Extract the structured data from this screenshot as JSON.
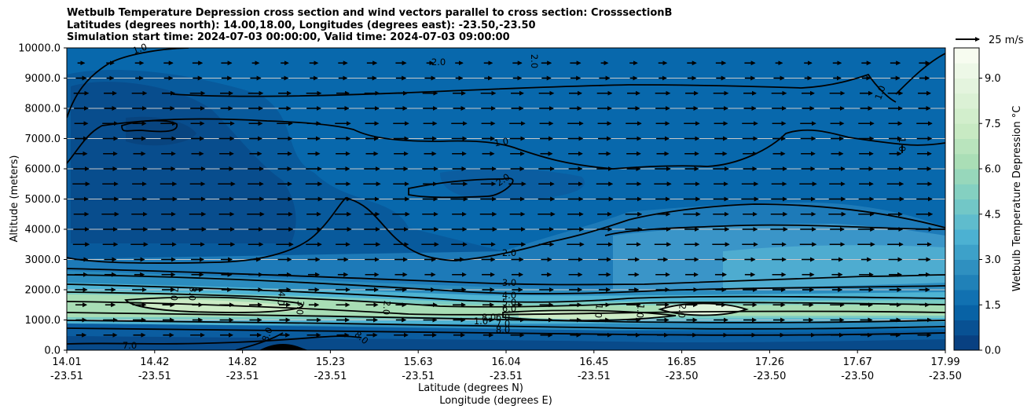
{
  "chart_data": {
    "type": "heatmap",
    "title_lines": [
      "Wetbulb Temperature Depression cross section and wind vectors parallel to cross section: CrosssectionB",
      "Latitudes (degrees north): 14.00,18.00, Longitudes (degrees east): -23.50,-23.50",
      "Simulation start time: 2024-07-03 00:00:00, Valid time: 2024-07-03 09:00:00"
    ],
    "ylabel": "Altitude (meters)",
    "xlabel_line1": "Latitude (degrees N)",
    "xlabel_line2": "Longitude (degrees E)",
    "colorbar_label": "Wetbulb Temperature Depression °C",
    "quiver_key_label": "25 m/s",
    "ylim": [
      0,
      10000
    ],
    "yticks": [
      "0.0",
      "1000.0",
      "2000.0",
      "3000.0",
      "4000.0",
      "5000.0",
      "6000.0",
      "7000.0",
      "8000.0",
      "9000.0",
      "10000.0"
    ],
    "xticks_lat": [
      "14.01",
      "14.42",
      "14.82",
      "15.23",
      "15.63",
      "16.04",
      "16.45",
      "16.85",
      "17.26",
      "17.67",
      "17.99"
    ],
    "xticks_lon": [
      "-23.51",
      "-23.51",
      "-23.51",
      "-23.51",
      "-23.51",
      "-23.51",
      "-23.51",
      "-23.50",
      "-23.50",
      "-23.50",
      "-23.50"
    ],
    "colorbar_ticks": [
      "0.0",
      "1.5",
      "3.0",
      "4.5",
      "6.0",
      "7.5",
      "9.0"
    ],
    "colorbar_range": [
      0,
      10
    ],
    "colormap": [
      "#084081",
      "#0868ac",
      "#2b8cbe",
      "#4eb3d3",
      "#7bccc4",
      "#a8ddb5",
      "#ccebc5",
      "#e0f3db",
      "#f7fcf0"
    ],
    "contour_labels": [
      "1.0",
      "2.0",
      "2.0",
      "1.0",
      "1.0",
      "2.0",
      "1.0",
      "2.0",
      "3.0",
      "4.0",
      "5.0",
      "6.0",
      "7.0",
      "8.0",
      "4.0",
      "3.0",
      "2.0",
      "1.0",
      "1.0",
      "2.0",
      "6.0",
      "7.0",
      "8.0",
      "7.0",
      "8.0",
      "8.0",
      "8.0",
      "1.0"
    ],
    "wind_vector_direction": "parallel, northward along section",
    "wind_vector_speed_range_ms": [
      5,
      25
    ]
  }
}
